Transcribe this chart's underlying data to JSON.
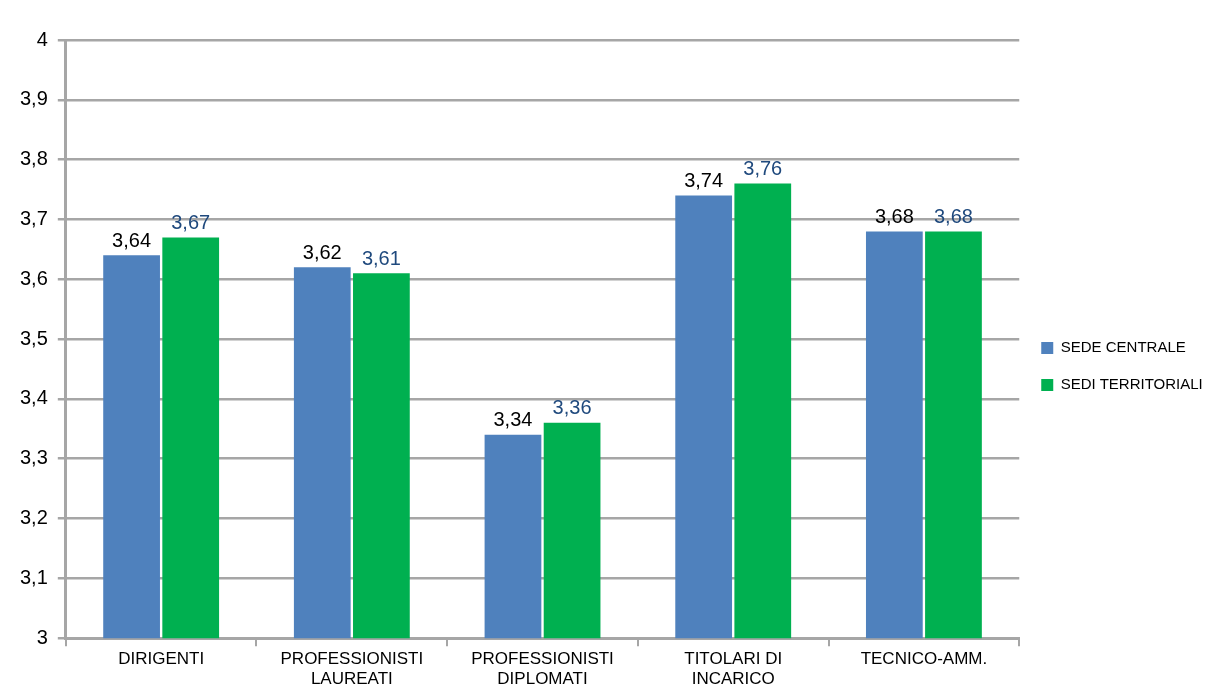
{
  "chart_data": {
    "type": "bar",
    "categories": [
      "DIRIGENTI",
      "PROFESSIONISTI LAUREATI",
      "PROFESSIONISTI DIPLOMATI",
      "TITOLARI DI INCARICO",
      "TECNICO-AMM."
    ],
    "series": [
      {
        "name": "SEDE CENTRALE",
        "color": "#4f81bd",
        "values": [
          3.64,
          3.62,
          3.34,
          3.74,
          3.68
        ],
        "value_labels": [
          "3,64",
          "3,62",
          "3,34",
          "3,74",
          "3,68"
        ]
      },
      {
        "name": "SEDI TERRITORIALI",
        "color": "#00b050",
        "values": [
          3.67,
          3.61,
          3.36,
          3.76,
          3.68
        ],
        "value_labels": [
          "3,67",
          "3,61",
          "3,36",
          "3,76",
          "3,68"
        ]
      }
    ],
    "ylim": [
      3,
      4
    ],
    "yticks": [
      3,
      {
        "value": 3.1,
        "label": "3,1"
      },
      {
        "value": 3.2,
        "label": "3,2"
      },
      {
        "value": 3.3,
        "label": "3,3"
      },
      {
        "value": 3.4,
        "label": "3,4"
      },
      {
        "value": 3.5,
        "label": "3,5"
      },
      {
        "value": 3.6,
        "label": "3,6"
      },
      {
        "value": 3.7,
        "label": "3,7"
      },
      {
        "value": 3.8,
        "label": "3,8"
      },
      {
        "value": 3.9,
        "label": "3,9"
      },
      4
    ],
    "grid": "y",
    "legend": "right"
  }
}
